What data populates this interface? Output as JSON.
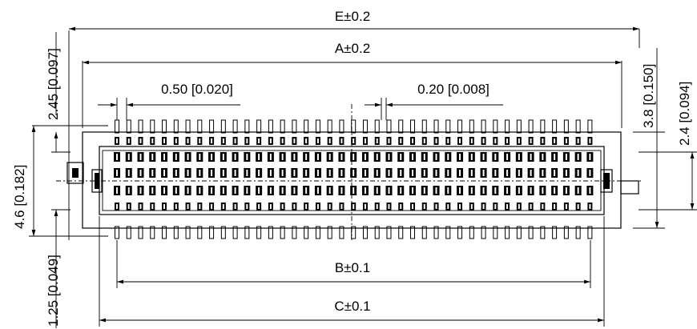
{
  "drawing": {
    "dimensions": {
      "e_overall": "E±0.2",
      "a_length": "A±0.2",
      "b_length": "B±0.1",
      "c_length": "C±0.1",
      "pitch": "0.50 [0.020]",
      "pin_width": "0.20 [0.008]",
      "offset_top": "2.45 [0.097]",
      "body_height": "4.6 [0.182]",
      "offset_bottom": "1.25 [0.049]",
      "depth": "3.8 [0.150]",
      "row_span": "2.4 [0.094]"
    }
  }
}
